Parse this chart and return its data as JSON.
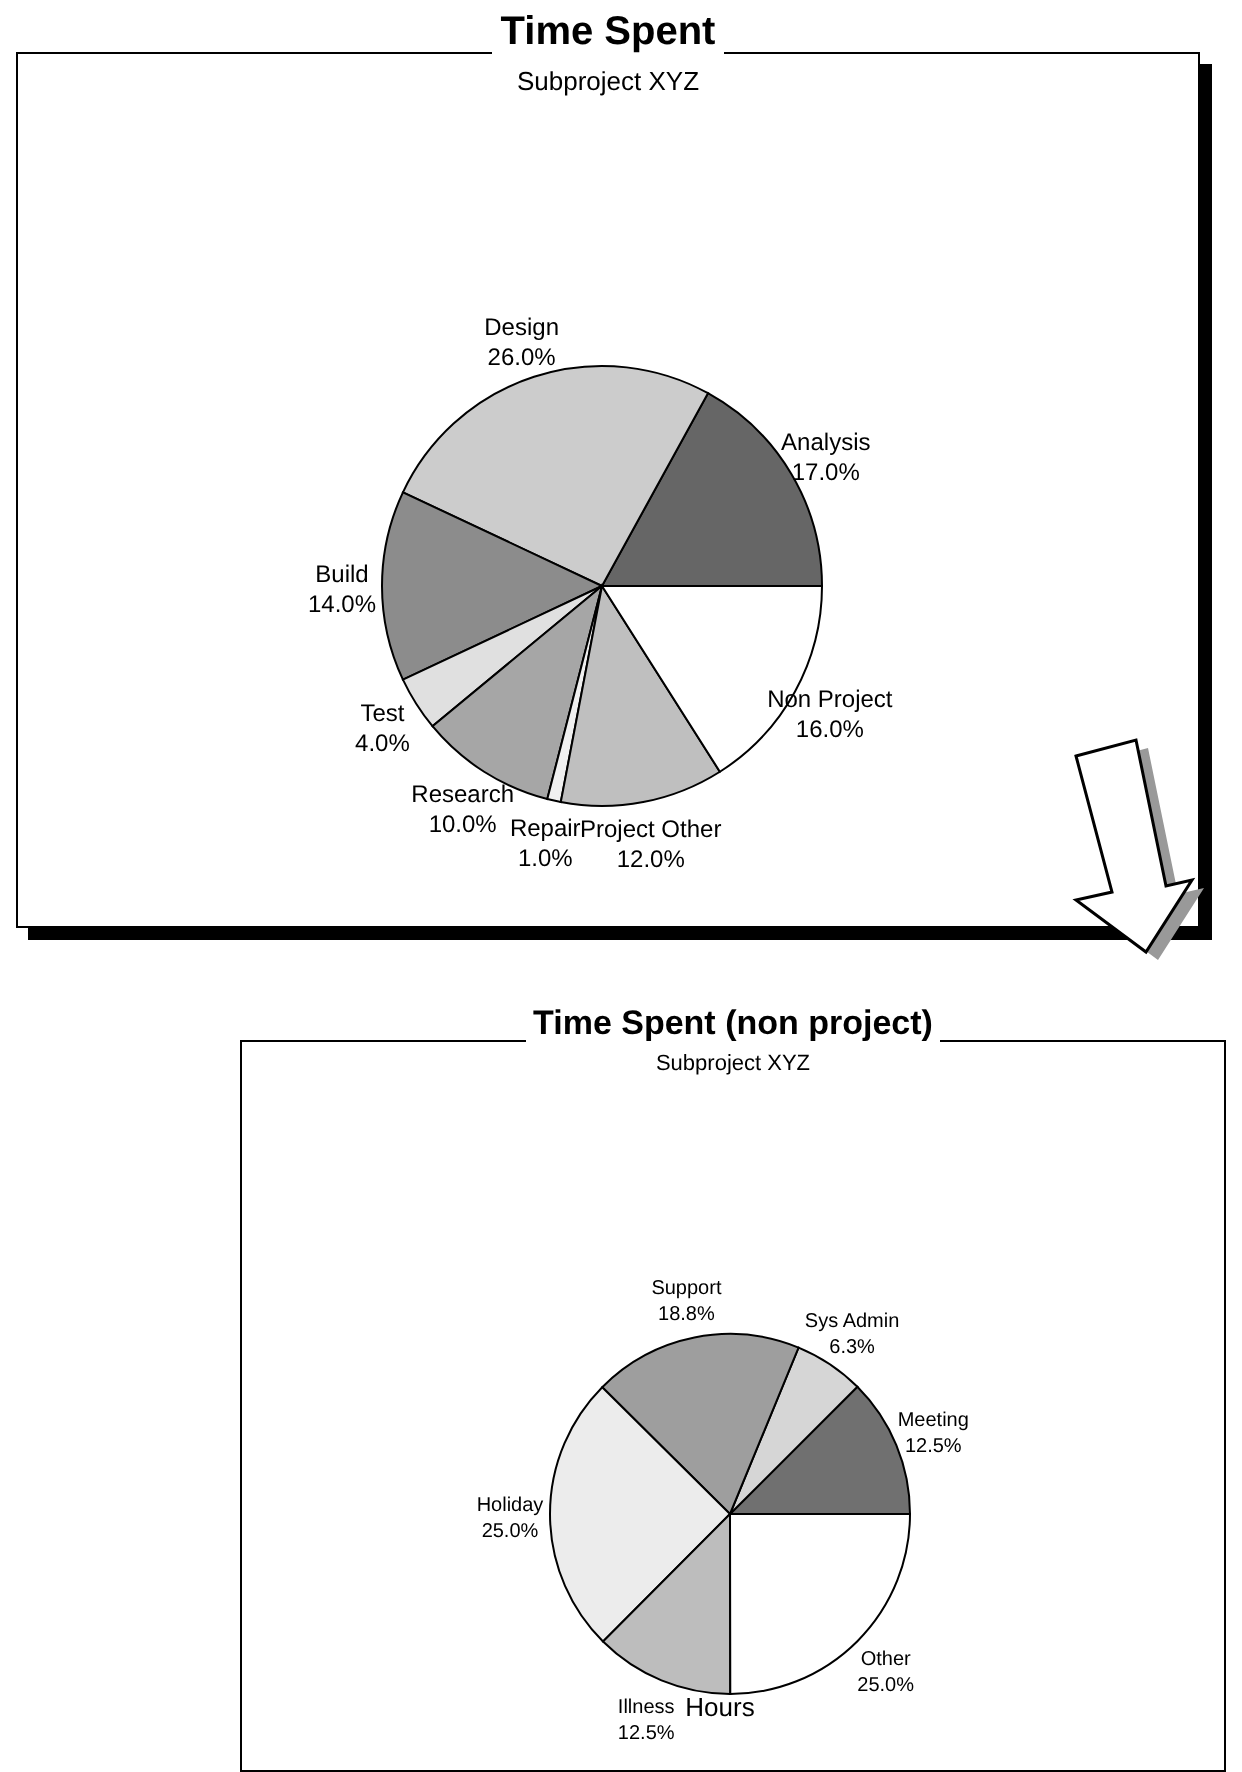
{
  "chart_data": [
    {
      "type": "pie",
      "title": "Time Spent",
      "subtitle": "Subproject XYZ",
      "categories": [
        "Analysis",
        "Design",
        "Build",
        "Test",
        "Research",
        "Repair",
        "Project Other",
        "Non Project"
      ],
      "values": [
        17,
        26,
        14,
        4,
        10,
        1,
        12,
        16
      ],
      "value_labels": [
        "17.0%",
        "26.0%",
        "14.0%",
        "4.0%",
        "10.0%",
        "1.0%",
        "12.0%",
        "16.0%"
      ],
      "colors": [
        "#666666",
        "#cccccc",
        "#8c8c8c",
        "#e0e0e0",
        "#a6a6a6",
        "#f0f0f0",
        "#bfbfbf",
        "#ffffff"
      ]
    },
    {
      "type": "pie",
      "title": "Time Spent (non project)",
      "subtitle": "Subproject XYZ",
      "categories": [
        "Meeting",
        "Sys Admin",
        "Support",
        "Holiday",
        "Illness",
        "Other"
      ],
      "values": [
        12.5,
        6.3,
        18.8,
        25,
        12.5,
        25
      ],
      "value_labels": [
        "12.5%",
        "6.3%",
        "18.8%",
        "25.0%",
        "12.5%",
        "25.0%"
      ],
      "colors": [
        "#707070",
        "#d6d6d6",
        "#9e9e9e",
        "#ececec",
        "#bdbdbd",
        "#ffffff"
      ],
      "annotations": [
        "Hours"
      ]
    }
  ]
}
